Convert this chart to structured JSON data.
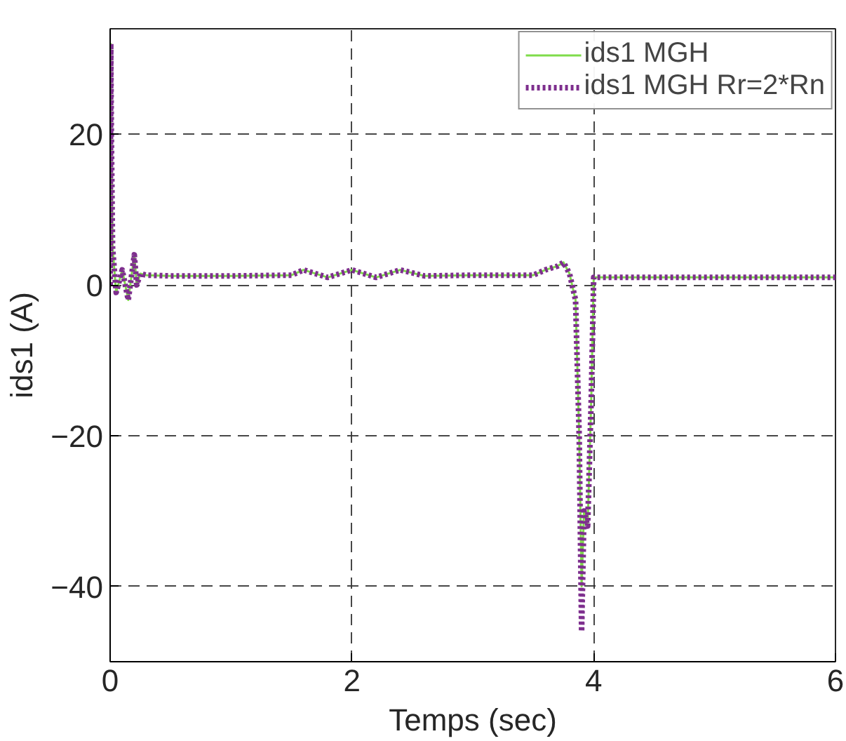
{
  "chart_data": {
    "type": "line",
    "xlabel": "Temps (sec)",
    "ylabel": "ids1 (A)",
    "xlim": [
      0,
      6
    ],
    "ylim": [
      -50,
      34
    ],
    "xticks": [
      0,
      2,
      4,
      6
    ],
    "yticks": [
      -40,
      -20,
      0,
      20
    ],
    "grid": true,
    "legend": "top right",
    "series": [
      {
        "name": "ids1 MGH",
        "color": "#7fdc4a",
        "line_style": "solid",
        "x": [
          0,
          0.005,
          0.01,
          0.02,
          0.05,
          0.1,
          0.15,
          0.2,
          0.22,
          0.25,
          0.3,
          0.5,
          1,
          1.5,
          1.6,
          1.8,
          2,
          2.2,
          2.4,
          2.6,
          3,
          3.5,
          3.6,
          3.7,
          3.75,
          3.8,
          3.85,
          3.88,
          3.9,
          3.92,
          3.95,
          3.98,
          4.0,
          4.02,
          4.5,
          5,
          5.5,
          6
        ],
        "values": [
          0,
          32,
          20,
          5,
          -1,
          2,
          -2,
          4,
          0,
          1.5,
          1.3,
          1.2,
          1.2,
          1.3,
          2,
          1,
          2,
          1,
          2,
          1.2,
          1.3,
          1.3,
          2,
          2.5,
          3,
          1.5,
          -2,
          -20,
          -40,
          -30,
          -32,
          -15,
          1,
          1,
          1,
          1,
          1,
          1
        ]
      },
      {
        "name": "ids1 MGH Rr=2*Rn",
        "color": "#7e2f8e",
        "line_style": "dotted",
        "x": [
          0,
          0.005,
          0.01,
          0.02,
          0.05,
          0.1,
          0.15,
          0.2,
          0.22,
          0.25,
          0.3,
          0.5,
          1,
          1.5,
          1.6,
          1.8,
          2,
          2.2,
          2.4,
          2.6,
          3,
          3.5,
          3.6,
          3.7,
          3.75,
          3.8,
          3.85,
          3.88,
          3.9,
          3.92,
          3.95,
          3.98,
          4.0,
          4.02,
          4.5,
          5,
          5.5,
          6
        ],
        "values": [
          0,
          32,
          20,
          5,
          -1,
          2,
          -2,
          4,
          0,
          1.5,
          1.3,
          1.2,
          1.2,
          1.3,
          2,
          1,
          2,
          1,
          2,
          1.2,
          1.3,
          1.3,
          2,
          2.5,
          3,
          1.5,
          -2,
          -20,
          -46,
          -30,
          -32,
          -15,
          1,
          1,
          1,
          1,
          1,
          1
        ]
      }
    ]
  }
}
